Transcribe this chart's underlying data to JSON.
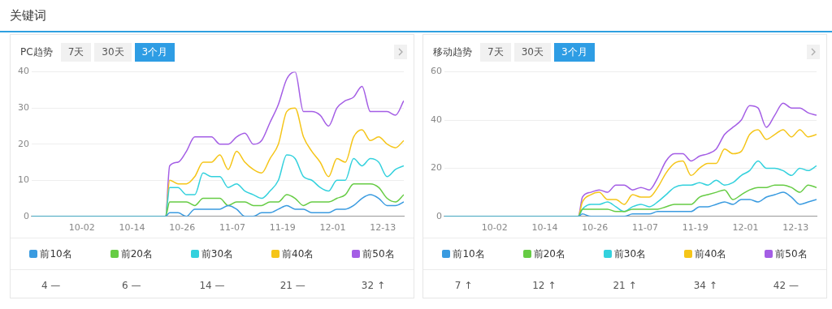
{
  "chart_data": [
    {
      "type": "line",
      "title": "关键词",
      "subtitle": "PC趋势",
      "annotations": [
        "7天",
        "30天",
        "3个月",
        "4 —",
        "6 —",
        "14 —",
        "21 —",
        "32 ↑"
      ],
      "x": [
        "--09-20",
        "--10-22",
        "--10-23",
        "--10-25",
        "--10-27",
        "--10-29",
        "--10-31",
        "--11-02",
        "--11-04",
        "--11-06",
        "--11-08",
        "--11-10",
        "--11-12",
        "--11-14",
        "--11-16",
        "--11-18",
        "--11-20",
        "--11-22",
        "--11-24",
        "--11-26",
        "--11-28",
        "--11-30",
        "--12-02",
        "--12-04",
        "--12-06",
        "--12-08",
        "--12-10",
        "--12-12",
        "--12-14",
        "--12-16",
        "--12-18"
      ],
      "xlim": [
        "--09-20",
        "--12-18"
      ],
      "xticks": [
        {
          "value": "--10-02",
          "label": "10-02"
        },
        {
          "value": "--10-14",
          "label": "10-14"
        },
        {
          "value": "--10-26",
          "label": "10-26"
        },
        {
          "value": "--11-07",
          "label": "11-07"
        },
        {
          "value": "--11-19",
          "label": "11-19"
        },
        {
          "value": "--12-01",
          "label": "12-01"
        },
        {
          "value": "--12-13",
          "label": "12-13"
        }
      ],
      "ylim": [
        0,
        40
      ],
      "yticks": [
        0,
        10,
        20,
        30,
        40
      ],
      "grid": "y",
      "legend": "bottom",
      "marker": "none",
      "line_style": "solid",
      "series": [
        {
          "name": "前10名",
          "color": "#3a9be0",
          "values": [
            0,
            0,
            1,
            1,
            0,
            2,
            2,
            2,
            2,
            3,
            2,
            0,
            0,
            1,
            1,
            2,
            3,
            2,
            2,
            1,
            1,
            1,
            2,
            2,
            3,
            5,
            6,
            5,
            3,
            3,
            4
          ]
        },
        {
          "name": "前20名",
          "color": "#66cc44",
          "values": [
            0,
            0,
            4,
            4,
            4,
            3,
            5,
            5,
            5,
            3,
            4,
            4,
            3,
            3,
            4,
            4,
            6,
            5,
            3,
            4,
            4,
            4,
            5,
            6,
            9,
            9,
            9,
            8,
            5,
            4,
            6
          ]
        },
        {
          "name": "前30名",
          "color": "#33d1dd",
          "values": [
            0,
            0,
            8,
            8,
            6,
            6,
            12,
            11,
            11,
            8,
            9,
            7,
            6,
            5,
            7,
            10,
            17,
            16,
            11,
            10,
            8,
            7,
            10,
            10,
            16,
            14,
            16,
            15,
            11,
            13,
            14
          ]
        },
        {
          "name": "前40名",
          "color": "#f5c518",
          "values": [
            0,
            0,
            10,
            9,
            9,
            11,
            15,
            15,
            17,
            13,
            18,
            15,
            13,
            12,
            16,
            20,
            29,
            30,
            22,
            18,
            15,
            11,
            16,
            15,
            22,
            24,
            21,
            22,
            20,
            19,
            21
          ]
        },
        {
          "name": "前50名",
          "color": "#a45ee5",
          "values": [
            0,
            0,
            14,
            15,
            18,
            22,
            22,
            22,
            20,
            20,
            22,
            23,
            20,
            21,
            26,
            31,
            38,
            40,
            29,
            29,
            28,
            25,
            30,
            32,
            33,
            36,
            29,
            29,
            29,
            28,
            32
          ]
        }
      ]
    },
    {
      "type": "line",
      "subtitle": "移动趋势",
      "annotations": [
        "7天",
        "30天",
        "3个月",
        "7 ↑",
        "12 ↑",
        "21 ↑",
        "34 ↑",
        "42 —"
      ],
      "x": [
        "--09-20",
        "--10-22",
        "--10-23",
        "--10-25",
        "--10-27",
        "--10-29",
        "--10-31",
        "--11-02",
        "--11-04",
        "--11-06",
        "--11-08",
        "--11-10",
        "--11-12",
        "--11-14",
        "--11-16",
        "--11-18",
        "--11-20",
        "--11-22",
        "--11-24",
        "--11-26",
        "--11-28",
        "--11-30",
        "--12-02",
        "--12-04",
        "--12-06",
        "--12-08",
        "--12-10",
        "--12-12",
        "--12-14",
        "--12-16",
        "--12-18"
      ],
      "xlim": [
        "--09-20",
        "--12-18"
      ],
      "xticks": [
        {
          "value": "--10-02",
          "label": "10-02"
        },
        {
          "value": "--10-14",
          "label": "10-14"
        },
        {
          "value": "--10-26",
          "label": "10-26"
        },
        {
          "value": "--11-07",
          "label": "11-07"
        },
        {
          "value": "--11-19",
          "label": "11-19"
        },
        {
          "value": "--12-01",
          "label": "12-01"
        },
        {
          "value": "--12-13",
          "label": "12-13"
        }
      ],
      "ylim": [
        0,
        60
      ],
      "yticks": [
        0,
        20,
        40,
        60
      ],
      "grid": "y",
      "legend": "bottom",
      "marker": "none",
      "line_style": "solid",
      "series": [
        {
          "name": "前10名",
          "color": "#3a9be0",
          "values": [
            0,
            0,
            1,
            0,
            0,
            0,
            0,
            0,
            1,
            1,
            1,
            2,
            2,
            2,
            2,
            2,
            4,
            4,
            5,
            6,
            5,
            7,
            7,
            6,
            8,
            9,
            10,
            8,
            5,
            6,
            7
          ]
        },
        {
          "name": "前20名",
          "color": "#66cc44",
          "values": [
            0,
            0,
            3,
            3,
            3,
            3,
            2,
            2,
            3,
            3,
            3,
            3,
            4,
            5,
            5,
            5,
            8,
            9,
            10,
            11,
            7,
            9,
            11,
            12,
            12,
            13,
            13,
            12,
            10,
            13,
            12
          ]
        },
        {
          "name": "前30名",
          "color": "#33d1dd",
          "values": [
            0,
            0,
            3,
            5,
            5,
            6,
            4,
            2,
            4,
            5,
            4,
            6,
            9,
            12,
            13,
            13,
            14,
            13,
            15,
            13,
            14,
            17,
            19,
            23,
            20,
            20,
            19,
            17,
            20,
            19,
            21
          ]
        },
        {
          "name": "前40名",
          "color": "#f5c518",
          "values": [
            0,
            0,
            6,
            9,
            10,
            7,
            7,
            5,
            9,
            8,
            8,
            12,
            18,
            22,
            23,
            17,
            20,
            22,
            22,
            28,
            26,
            27,
            34,
            36,
            32,
            34,
            36,
            33,
            36,
            33,
            34
          ]
        },
        {
          "name": "前50名",
          "color": "#a45ee5",
          "values": [
            0,
            0,
            8,
            10,
            11,
            10,
            13,
            13,
            11,
            12,
            11,
            16,
            23,
            26,
            26,
            23,
            25,
            26,
            28,
            34,
            37,
            40,
            46,
            45,
            37,
            42,
            47,
            45,
            45,
            43,
            42
          ]
        }
      ]
    }
  ]
}
